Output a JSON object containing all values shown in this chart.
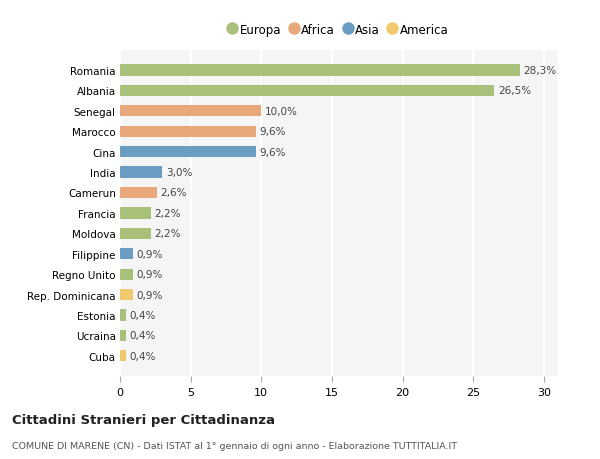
{
  "countries": [
    "Romania",
    "Albania",
    "Senegal",
    "Marocco",
    "Cina",
    "India",
    "Camerun",
    "Francia",
    "Moldova",
    "Filippine",
    "Regno Unito",
    "Rep. Dominicana",
    "Estonia",
    "Ucraina",
    "Cuba"
  ],
  "values": [
    28.3,
    26.5,
    10.0,
    9.6,
    9.6,
    3.0,
    2.6,
    2.2,
    2.2,
    0.9,
    0.9,
    0.9,
    0.4,
    0.4,
    0.4
  ],
  "labels": [
    "28,3%",
    "26,5%",
    "10,0%",
    "9,6%",
    "9,6%",
    "3,0%",
    "2,6%",
    "2,2%",
    "2,2%",
    "0,9%",
    "0,9%",
    "0,9%",
    "0,4%",
    "0,4%",
    "0,4%"
  ],
  "continents": [
    "Europa",
    "Europa",
    "Africa",
    "Africa",
    "Asia",
    "Asia",
    "Africa",
    "Europa",
    "Europa",
    "Asia",
    "Europa",
    "America",
    "Europa",
    "Europa",
    "America"
  ],
  "colors": {
    "Europa": "#a8c07a",
    "Africa": "#e8a87c",
    "Asia": "#6b9dc2",
    "America": "#f0c96e"
  },
  "legend_order": [
    "Europa",
    "Africa",
    "Asia",
    "America"
  ],
  "bg_color": "#ffffff",
  "axes_bg_color": "#f5f5f5",
  "grid_color": "#ffffff",
  "title": "Cittadini Stranieri per Cittadinanza",
  "subtitle": "COMUNE DI MARENE (CN) - Dati ISTAT al 1° gennaio di ogni anno - Elaborazione TUTTITALIA.IT",
  "xlim": [
    0,
    31
  ],
  "xticks": [
    0,
    5,
    10,
    15,
    20,
    25,
    30
  ]
}
